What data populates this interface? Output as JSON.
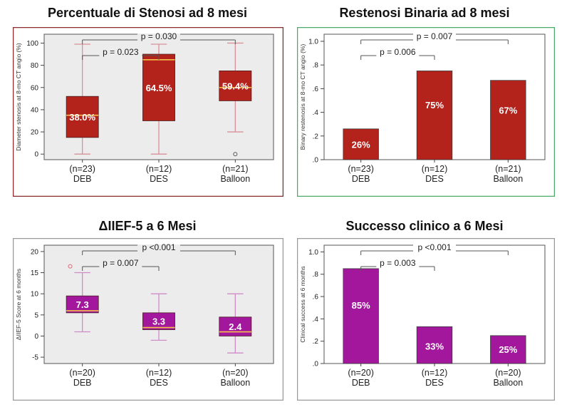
{
  "colors": {
    "red_fill": "#b3221b",
    "purple_fill": "#a3179d",
    "median_line": "#f5c04a",
    "whisker_red": "#d9919a",
    "whisker_purple": "#cf8cc7",
    "plot_bg": "#ececec",
    "frame_red": "#8a2b2b",
    "frame_green": "#4caa68",
    "frame_gray": "#9a9a9a"
  },
  "chart_data": [
    {
      "type": "box",
      "title": "Percentuale di Stenosi ad 8 mesi",
      "ylabel": "Diameter stenosis at 8-mo CT angio (%)",
      "ylim": [
        -5,
        108
      ],
      "yticks": [
        0,
        20,
        40,
        60,
        80,
        100
      ],
      "ytick_labels": [
        "0",
        "20",
        "40",
        "60",
        "80",
        "100"
      ],
      "categories": [
        "DEB",
        "DES",
        "Balloon"
      ],
      "counts": [
        "(n=23)",
        "(n=12)",
        "(n=21)"
      ],
      "boxes": [
        {
          "min": 0,
          "q1": 15,
          "median": 35,
          "q3": 52,
          "max": 99,
          "label": "38.0%",
          "outliers": []
        },
        {
          "min": 0,
          "q1": 30,
          "median": 85,
          "q3": 90,
          "max": 99,
          "label": "64.5%",
          "outliers": []
        },
        {
          "min": 20,
          "q1": 48,
          "median": 60,
          "q3": 75,
          "max": 100,
          "label": "59.4%",
          "outliers": [
            0
          ]
        }
      ],
      "brackets": [
        {
          "from": 0,
          "to": 2,
          "label": "p = 0.030",
          "level": 1
        },
        {
          "from": 0,
          "to": 1,
          "label": "p = 0.023",
          "level": 0
        }
      ]
    },
    {
      "type": "bar",
      "title": "Restenosi Binaria ad 8 mesi",
      "ylabel": "Binary restenosis at 8-mo CT angio (%)",
      "ylim": [
        0,
        1.06
      ],
      "yticks": [
        0,
        0.2,
        0.4,
        0.6,
        0.8,
        1.0
      ],
      "ytick_labels": [
        ".0",
        ".2",
        ".4",
        ".6",
        ".8",
        "1.0"
      ],
      "categories": [
        "DEB",
        "DES",
        "Balloon"
      ],
      "counts": [
        "(n=23)",
        "(n=12)",
        "(n=21)"
      ],
      "values": [
        0.26,
        0.75,
        0.67
      ],
      "labels": [
        "26%",
        "75%",
        "67%"
      ],
      "brackets": [
        {
          "from": 0,
          "to": 2,
          "label": "p = 0.007",
          "level": 1
        },
        {
          "from": 0,
          "to": 1,
          "label": "p = 0.006",
          "level": 0
        }
      ]
    },
    {
      "type": "box",
      "title": "ΔIIEF-5 a 6 Mesi",
      "ylabel": "ΔIIEF-5 Score at 6 months",
      "ylim": [
        -6.5,
        21.5
      ],
      "yticks": [
        -5,
        0,
        5,
        10,
        15,
        20
      ],
      "ytick_labels": [
        "-5",
        "0",
        "5",
        "10",
        "15",
        "20"
      ],
      "categories": [
        "DEB",
        "DES",
        "Balloon"
      ],
      "counts": [
        "(n=20)",
        "(n=12)",
        "(n=20)"
      ],
      "boxes": [
        {
          "min": 1,
          "q1": 5.5,
          "median": 6,
          "q3": 9.5,
          "max": 15,
          "label": "7.3",
          "outliers": [
            16.5
          ]
        },
        {
          "min": -1,
          "q1": 1.5,
          "median": 2,
          "q3": 5.5,
          "max": 10,
          "label": "3.3",
          "outliers": []
        },
        {
          "min": -4,
          "q1": 0,
          "median": 1,
          "q3": 4.5,
          "max": 10,
          "label": "2.4",
          "outliers": []
        }
      ],
      "brackets": [
        {
          "from": 0,
          "to": 2,
          "label": "p <0.001",
          "level": 1
        },
        {
          "from": 0,
          "to": 1,
          "label": "p = 0.007",
          "level": 0
        }
      ]
    },
    {
      "type": "bar",
      "title": "Successo clinico a 6 Mesi",
      "ylabel": "Clinical success at 6 months",
      "ylim": [
        0,
        1.06
      ],
      "yticks": [
        0,
        0.2,
        0.4,
        0.6,
        0.8,
        1.0
      ],
      "ytick_labels": [
        ".0",
        ".2",
        ".4",
        ".6",
        ".8",
        "1.0"
      ],
      "categories": [
        "DEB",
        "DES",
        "Balloon"
      ],
      "counts": [
        "(n=20)",
        "(n=12)",
        "(n=20)"
      ],
      "values": [
        0.85,
        0.33,
        0.25
      ],
      "labels": [
        "85%",
        "33%",
        "25%"
      ],
      "brackets": [
        {
          "from": 0,
          "to": 2,
          "label": "p <0.001",
          "level": 1
        },
        {
          "from": 0,
          "to": 1,
          "label": "p = 0.003",
          "level": 0
        }
      ]
    }
  ]
}
